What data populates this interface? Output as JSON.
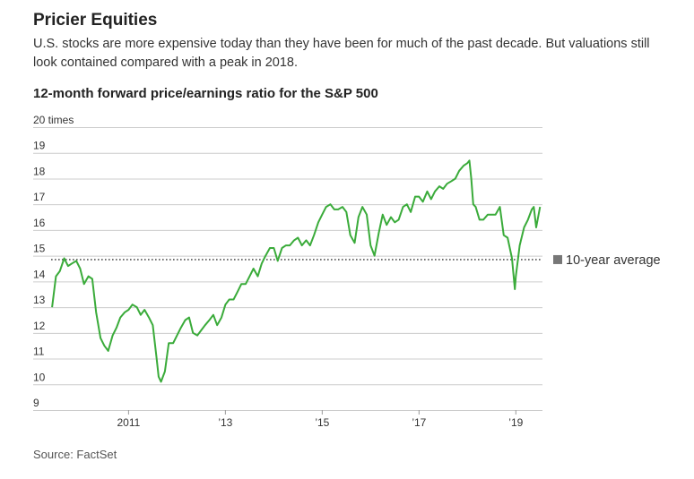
{
  "header": {
    "title": "Pricier Equities",
    "subtitle": "U.S. stocks are more expensive today than they have been for much of the past decade. But valuations still look contained compared with a peak in 2018.",
    "chart_heading": "12-month forward price/earnings ratio for the S&P 500"
  },
  "footer": {
    "source": "Source: FactSet"
  },
  "colors": {
    "line": "#3aab3a",
    "average": "#555555",
    "grid": "#cccccc"
  },
  "chart_data": {
    "type": "line",
    "title": "12-month forward price/earnings ratio for the S&P 500",
    "ylabel": "",
    "xlabel": "",
    "ylim": [
      9,
      20
    ],
    "xlim": [
      2009.4,
      2019.55
    ],
    "y_ticks": [
      {
        "value": 20,
        "label": "20 times"
      },
      {
        "value": 19,
        "label": "19"
      },
      {
        "value": 18,
        "label": "18"
      },
      {
        "value": 17,
        "label": "17"
      },
      {
        "value": 16,
        "label": "16"
      },
      {
        "value": 15,
        "label": "15"
      },
      {
        "value": 14,
        "label": "14"
      },
      {
        "value": 13,
        "label": "13"
      },
      {
        "value": 12,
        "label": "12"
      },
      {
        "value": 11,
        "label": "11"
      },
      {
        "value": 10,
        "label": "10"
      },
      {
        "value": 9,
        "label": "9"
      }
    ],
    "x_ticks": [
      {
        "value": 2011,
        "label": "2011"
      },
      {
        "value": 2013,
        "label": "’13"
      },
      {
        "value": 2015,
        "label": "’15"
      },
      {
        "value": 2017,
        "label": "’17"
      },
      {
        "value": 2019,
        "label": "’19"
      }
    ],
    "reference_line": {
      "value": 14.85,
      "label": "10-year average"
    },
    "grid": true,
    "series": [
      {
        "x": [
          2009.42,
          2009.5,
          2009.58,
          2009.67,
          2009.75,
          2009.83,
          2009.92,
          2010.0,
          2010.08,
          2010.17,
          2010.25,
          2010.33,
          2010.42,
          2010.5,
          2010.58,
          2010.67,
          2010.75,
          2010.83,
          2010.92,
          2011.0,
          2011.08,
          2011.17,
          2011.25,
          2011.33,
          2011.42,
          2011.5,
          2011.58,
          2011.62,
          2011.67,
          2011.75,
          2011.83,
          2011.92,
          2012.0,
          2012.08,
          2012.17,
          2012.25,
          2012.33,
          2012.42,
          2012.5,
          2012.58,
          2012.67,
          2012.75,
          2012.83,
          2012.92,
          2013.0,
          2013.08,
          2013.17,
          2013.25,
          2013.33,
          2013.42,
          2013.5,
          2013.58,
          2013.67,
          2013.75,
          2013.83,
          2013.92,
          2014.0,
          2014.08,
          2014.17,
          2014.25,
          2014.33,
          2014.42,
          2014.5,
          2014.58,
          2014.67,
          2014.75,
          2014.83,
          2014.92,
          2015.0,
          2015.08,
          2015.17,
          2015.25,
          2015.33,
          2015.42,
          2015.5,
          2015.58,
          2015.67,
          2015.75,
          2015.83,
          2015.92,
          2016.0,
          2016.08,
          2016.17,
          2016.25,
          2016.33,
          2016.42,
          2016.5,
          2016.58,
          2016.67,
          2016.75,
          2016.83,
          2016.92,
          2017.0,
          2017.08,
          2017.17,
          2017.25,
          2017.33,
          2017.42,
          2017.5,
          2017.58,
          2017.67,
          2017.75,
          2017.83,
          2017.92,
          2018.0,
          2018.04,
          2018.08,
          2018.12,
          2018.17,
          2018.25,
          2018.33,
          2018.42,
          2018.5,
          2018.58,
          2018.67,
          2018.75,
          2018.83,
          2018.92,
          2018.98,
          2019.0,
          2019.08,
          2019.17,
          2019.25,
          2019.33,
          2019.37,
          2019.42,
          2019.5
        ],
        "values": [
          13.0,
          14.2,
          14.4,
          14.9,
          14.6,
          14.7,
          14.8,
          14.5,
          13.9,
          14.2,
          14.1,
          12.8,
          11.8,
          11.5,
          11.3,
          11.9,
          12.2,
          12.6,
          12.8,
          12.9,
          13.1,
          13.0,
          12.7,
          12.9,
          12.6,
          12.3,
          11.0,
          10.3,
          10.1,
          10.5,
          11.6,
          11.6,
          11.9,
          12.2,
          12.5,
          12.6,
          12.0,
          11.9,
          12.1,
          12.3,
          12.5,
          12.7,
          12.3,
          12.6,
          13.1,
          13.3,
          13.3,
          13.6,
          13.9,
          13.9,
          14.2,
          14.5,
          14.2,
          14.7,
          15.0,
          15.3,
          15.3,
          14.8,
          15.3,
          15.4,
          15.4,
          15.6,
          15.7,
          15.4,
          15.6,
          15.4,
          15.8,
          16.3,
          16.6,
          16.9,
          17.0,
          16.8,
          16.8,
          16.9,
          16.7,
          15.8,
          15.5,
          16.5,
          16.9,
          16.6,
          15.4,
          15.0,
          15.9,
          16.6,
          16.2,
          16.5,
          16.3,
          16.4,
          16.9,
          17.0,
          16.7,
          17.3,
          17.3,
          17.1,
          17.5,
          17.2,
          17.5,
          17.7,
          17.6,
          17.8,
          17.9,
          18.0,
          18.3,
          18.5,
          18.6,
          18.7,
          18.0,
          17.0,
          16.9,
          16.4,
          16.4,
          16.6,
          16.6,
          16.6,
          16.9,
          15.8,
          15.7,
          14.9,
          13.7,
          14.2,
          15.4,
          16.1,
          16.4,
          16.8,
          16.9,
          16.1,
          16.9
        ]
      }
    ]
  }
}
